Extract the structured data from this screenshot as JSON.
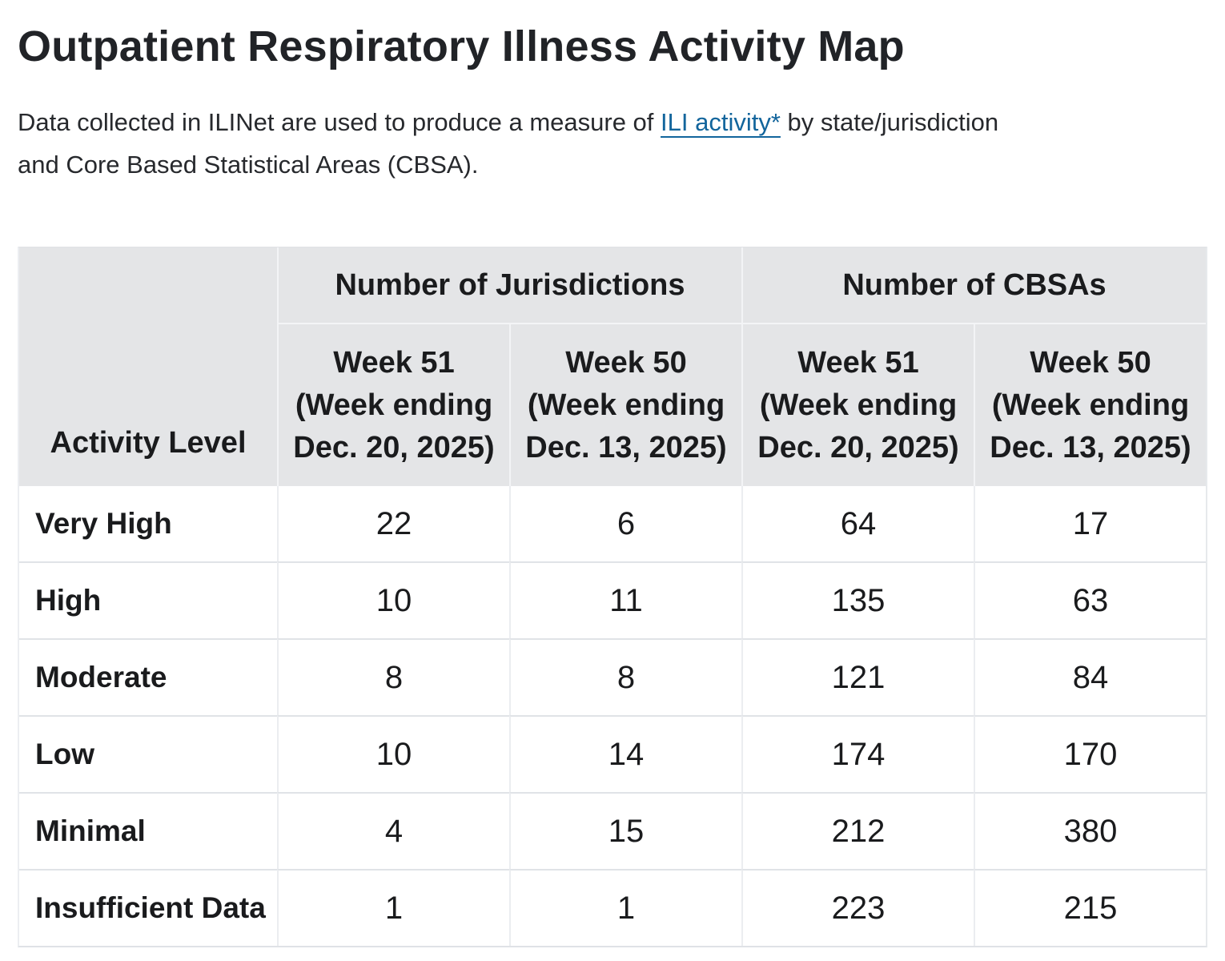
{
  "page": {
    "title": "Outpatient Respiratory Illness Activity Map"
  },
  "intro": {
    "before_link": "Data collected in ILINet are used to produce a measure of ",
    "link_text": "ILI activity*",
    "after_link_line1": " by state/jurisdiction",
    "line2": "and Core Based Statistical Areas (CBSA)."
  },
  "colors": {
    "link_blue": "#12659c",
    "table_header_bg": "#e4e5e7",
    "row_border": "#e0e3e7",
    "column_border": "#ebedf0",
    "text": "#1a1b1d"
  },
  "table": {
    "corner_label": "Activity Level",
    "groups": [
      {
        "label": "Number of Jurisdictions"
      },
      {
        "label": "Number of CBSAs"
      }
    ],
    "columns": [
      {
        "week": "Week 51",
        "ending_top": "(Week ending",
        "ending_bottom": "Dec. 20, 2025)"
      },
      {
        "week": "Week 50",
        "ending_top": "(Week ending",
        "ending_bottom": "Dec. 13, 2025)"
      },
      {
        "week": "Week 51",
        "ending_top": "(Week ending",
        "ending_bottom": "Dec. 20, 2025)"
      },
      {
        "week": "Week 50",
        "ending_top": "(Week ending",
        "ending_bottom": "Dec. 13, 2025)"
      }
    ],
    "rows": [
      {
        "label": "Very High",
        "values": [
          "22",
          "6",
          "64",
          "17"
        ]
      },
      {
        "label": "High",
        "values": [
          "10",
          "11",
          "135",
          "63"
        ]
      },
      {
        "label": "Moderate",
        "values": [
          "8",
          "8",
          "121",
          "84"
        ]
      },
      {
        "label": "Low",
        "values": [
          "10",
          "14",
          "174",
          "170"
        ]
      },
      {
        "label": "Minimal",
        "values": [
          "4",
          "15",
          "212",
          "380"
        ]
      },
      {
        "label": "Insufficient Data",
        "values": [
          "1",
          "1",
          "223",
          "215"
        ]
      }
    ]
  }
}
